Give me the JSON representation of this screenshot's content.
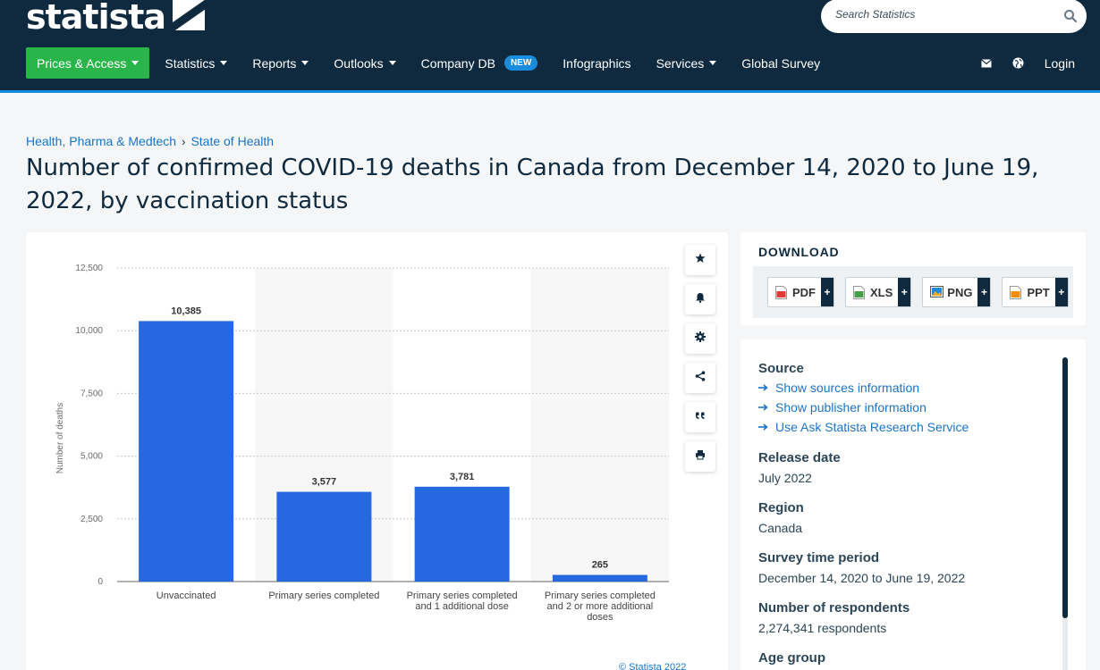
{
  "brand": {
    "name": "statista"
  },
  "search": {
    "placeholder": "Search Statistics"
  },
  "nav": {
    "items": [
      {
        "label": "Prices & Access"
      },
      {
        "label": "Statistics"
      },
      {
        "label": "Reports"
      },
      {
        "label": "Outlooks"
      },
      {
        "label": "Company DB",
        "badge": "NEW"
      },
      {
        "label": "Infographics"
      },
      {
        "label": "Services"
      },
      {
        "label": "Global Survey"
      }
    ],
    "login": "Login"
  },
  "breadcrumb": {
    "first": "Health, Pharma & Medtech",
    "sep": "›",
    "second": "State of Health"
  },
  "page": {
    "title": "Number of confirmed COVID-19 deaths in Canada from December 14, 2020 to June 19, 2022, by vaccination status"
  },
  "chart_data": {
    "type": "bar",
    "categories": [
      "Unvaccinated",
      "Primary series completed",
      "Primary series completed and 1 additional dose",
      "Primary series completed and 2 or more additional doses"
    ],
    "category_lines": [
      [
        "Unvaccinated"
      ],
      [
        "Primary series completed"
      ],
      [
        "Primary series completed",
        "and 1 additional dose"
      ],
      [
        "Primary series completed",
        "and 2 or more additional",
        "doses"
      ]
    ],
    "values": [
      10385,
      3577,
      3781,
      265
    ],
    "value_labels": [
      "10,385",
      "3,577",
      "3,781",
      "265"
    ],
    "ylabel": "Number of deaths",
    "ylim": [
      0,
      12500
    ],
    "yticks": [
      0,
      2500,
      5000,
      7500,
      10000,
      12500
    ],
    "ytick_labels": [
      "0",
      "2,500",
      "5,000",
      "7,500",
      "10,000",
      "12,500"
    ],
    "bar_color": "#2568e0",
    "grid": true
  },
  "copyright": "© Statista 2022",
  "download": {
    "title": "DOWNLOAD",
    "buttons": [
      {
        "label": "PDF",
        "color": "#e53935"
      },
      {
        "label": "XLS",
        "color": "#43a047"
      },
      {
        "label": "PNG",
        "color": "#1e88e5"
      },
      {
        "label": "PPT",
        "color": "#fb8c00"
      }
    ],
    "plus": "+"
  },
  "info": {
    "source_heading": "Source",
    "links": [
      "Show sources information",
      "Show publisher information",
      "Use Ask Statista Research Service"
    ],
    "release_heading": "Release date",
    "release_value": "July 2022",
    "region_heading": "Region",
    "region_value": "Canada",
    "survey_heading": "Survey time period",
    "survey_value": "December 14, 2020 to June 19, 2022",
    "respondents_heading": "Number of respondents",
    "respondents_value": "2,274,341 respondents",
    "age_heading": "Age group"
  },
  "colors": {
    "navy": "#0f2a3e",
    "green": "#2ab54b",
    "accent": "#1a8cdd",
    "link": "#1a73c9"
  }
}
